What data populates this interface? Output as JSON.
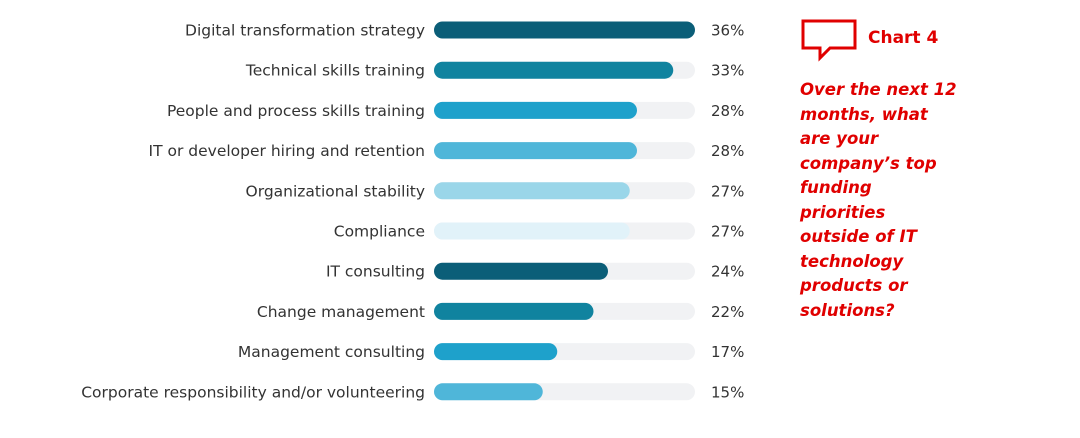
{
  "chart_tag": "Chart 4",
  "question": "Over the next 12 months, what are your company’s top funding priorities outside of IT technology products or solutions?",
  "colors": {
    "track": "#f1f2f4",
    "accent": "#e00000",
    "palette": [
      "#0b5e78",
      "#10839f",
      "#1ea1cb",
      "#4fb6d9",
      "#9ad6e9",
      "#e1f2f9"
    ]
  },
  "chart_data": {
    "type": "bar",
    "orientation": "horizontal",
    "categories": [
      "Digital transformation strategy",
      "Technical skills training",
      "People and process skills training",
      "IT or developer hiring and retention",
      "Organizational stability",
      "Compliance",
      "IT consulting",
      "Change management",
      "Management consulting",
      "Corporate responsibility and/or volunteering"
    ],
    "values": [
      36,
      33,
      28,
      28,
      27,
      27,
      24,
      22,
      17,
      15
    ],
    "value_labels": [
      "36%",
      "33%",
      "28%",
      "28%",
      "27%",
      "27%",
      "24%",
      "22%",
      "17%",
      "15%"
    ],
    "xlim": [
      0,
      36
    ],
    "bar_colors": [
      "#0b5e78",
      "#10839f",
      "#1ea1cb",
      "#4fb6d9",
      "#9ad6e9",
      "#e1f2f9",
      "#0b5e78",
      "#10839f",
      "#1ea1cb",
      "#4fb6d9"
    ],
    "grid": false,
    "legend": "none"
  }
}
